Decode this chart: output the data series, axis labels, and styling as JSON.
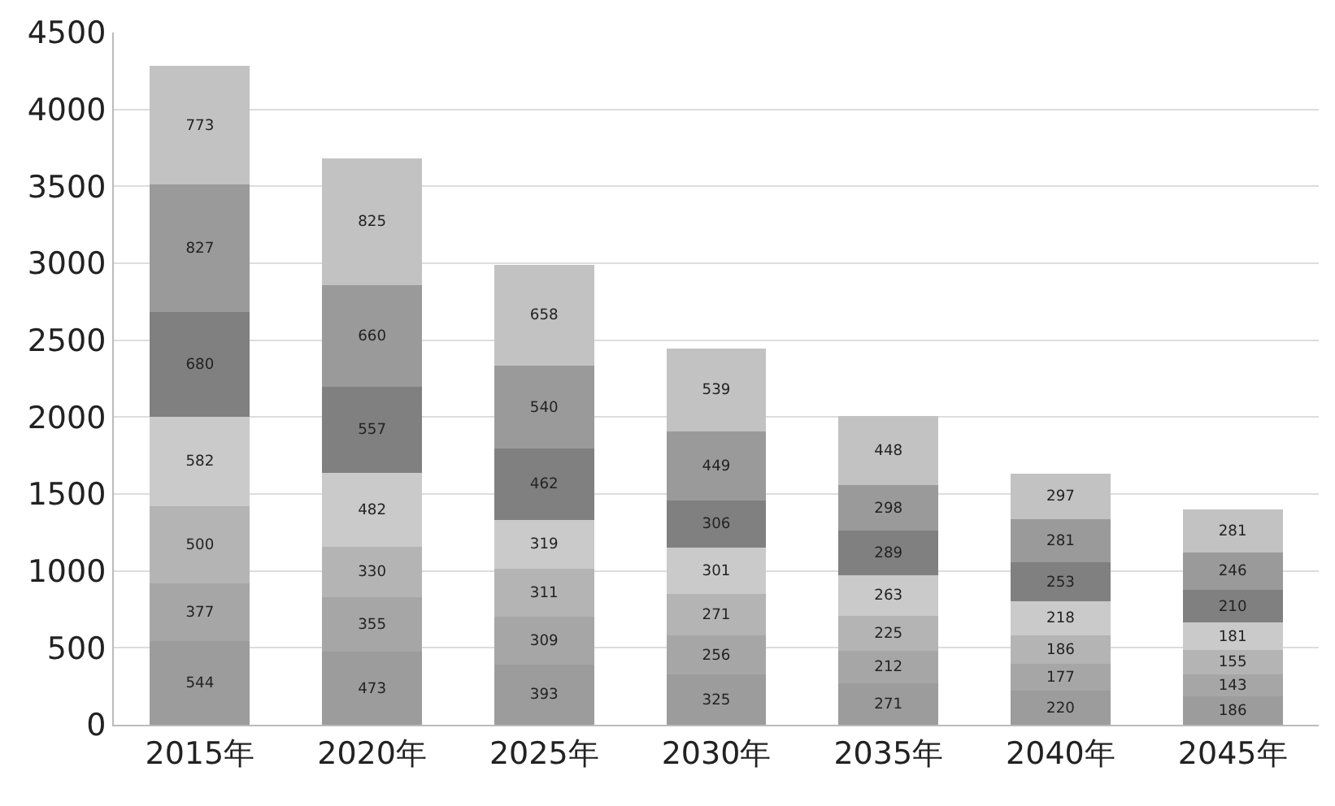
{
  "chart_data": {
    "type": "bar",
    "stacked": true,
    "data_labels": true,
    "grid": "y",
    "categories": [
      "2015年",
      "2020年",
      "2025年",
      "2030年",
      "2035年",
      "2040年",
      "2045年"
    ],
    "ylim": [
      0,
      4500
    ],
    "yticks": [
      0,
      500,
      1000,
      1500,
      2000,
      2500,
      3000,
      3500,
      4000,
      4500
    ],
    "series": [
      {
        "color": "#9c9c9c",
        "values": [
          544,
          473,
          393,
          325,
          271,
          220,
          186
        ]
      },
      {
        "color": "#a6a6a6",
        "values": [
          377,
          355,
          309,
          256,
          212,
          177,
          143
        ]
      },
      {
        "color": "#b4b4b4",
        "values": [
          500,
          330,
          311,
          271,
          225,
          186,
          155
        ]
      },
      {
        "color": "#cacaca",
        "values": [
          582,
          482,
          319,
          301,
          263,
          218,
          181
        ]
      },
      {
        "color": "#808080",
        "values": [
          680,
          557,
          462,
          306,
          289,
          253,
          210
        ]
      },
      {
        "color": "#9a9a9a",
        "values": [
          827,
          660,
          540,
          449,
          298,
          281,
          246
        ]
      },
      {
        "color": "#c2c2c2",
        "values": [
          773,
          825,
          658,
          539,
          448,
          297,
          281
        ]
      }
    ]
  }
}
